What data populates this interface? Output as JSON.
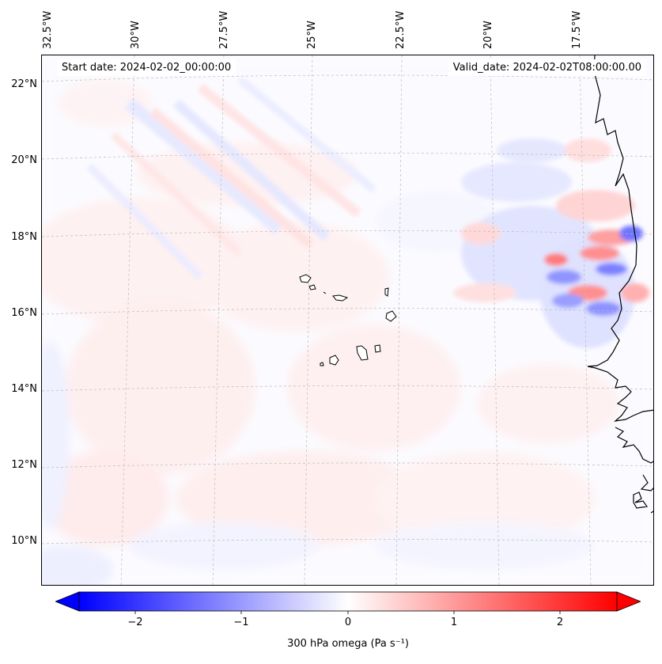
{
  "map": {
    "start_date": "Start date: 2024-02-02_00:00:00",
    "valid_date": "Valid_date: 2024-02-02T08:00:00.00",
    "lat_labels": [
      "22°N",
      "20°N",
      "18°N",
      "16°N",
      "14°N",
      "12°N",
      "10°N"
    ],
    "lon_labels": [
      "32.5°W",
      "30°W",
      "27.5°W",
      "25°W",
      "22.5°W",
      "20°W",
      "17.5°W"
    ],
    "region": "Cape Verde / West Africa coast",
    "features": [
      "coastline",
      "gridlines",
      "islands"
    ]
  },
  "colorbar": {
    "label": "300 hPa omega (Pa s⁻¹)",
    "ticks": [
      "−2",
      "−1",
      "0",
      "1",
      "2"
    ],
    "min": -2.5,
    "max": 2.5,
    "low_color": "#0000ff",
    "mid_color": "#ffffff",
    "high_color": "#ff0000"
  }
}
